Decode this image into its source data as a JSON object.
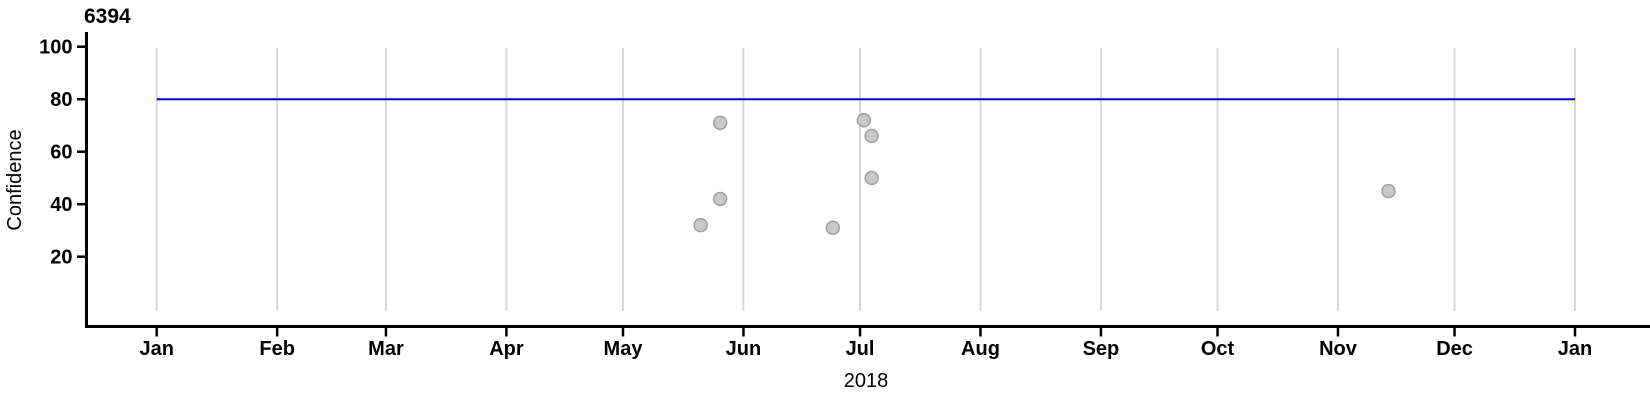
{
  "chart": {
    "title": "6394",
    "y_axis": {
      "label": "Confidence",
      "tick_labels": [
        "100",
        "80",
        "60",
        "40",
        "20"
      ]
    },
    "x_axis": {
      "year_label": "2018",
      "month_labels": [
        "Jan",
        "Feb",
        "Mar",
        "Apr",
        "May",
        "Jun",
        "Jul",
        "Aug",
        "Sep",
        "Oct",
        "Nov",
        "Dec",
        "Jan"
      ]
    },
    "colors": {
      "reference_line": "#0000CC",
      "point_fill": "#C8C8C8",
      "point_stroke": "#9C9C9C",
      "gridline": "#D9D9D9",
      "axis": "#000000",
      "text": "#000000"
    }
  },
  "chart_data": {
    "type": "scatter",
    "title": "6394",
    "ylabel": "Confidence",
    "xlabel": "2018",
    "x_axis_kind": "date",
    "x_range": [
      "2018-01-01",
      "2019-01-01"
    ],
    "x_tick_labels": [
      "Jan",
      "Feb",
      "Mar",
      "Apr",
      "May",
      "Jun",
      "Jul",
      "Aug",
      "Sep",
      "Oct",
      "Nov",
      "Dec",
      "Jan"
    ],
    "y_ticks": [
      20,
      40,
      60,
      80,
      100
    ],
    "ylim": [
      0,
      105
    ],
    "grid": "vertical month gridlines only",
    "reference_line_y": 80,
    "points": [
      {
        "date": "2018-05-21",
        "value": 32
      },
      {
        "date": "2018-05-26",
        "value": 71
      },
      {
        "date": "2018-05-26",
        "value": 42
      },
      {
        "date": "2018-06-24",
        "value": 31
      },
      {
        "date": "2018-07-02",
        "value": 72
      },
      {
        "date": "2018-07-04",
        "value": 66
      },
      {
        "date": "2018-07-04",
        "value": 50
      },
      {
        "date": "2018-11-14",
        "value": 45
      }
    ]
  }
}
